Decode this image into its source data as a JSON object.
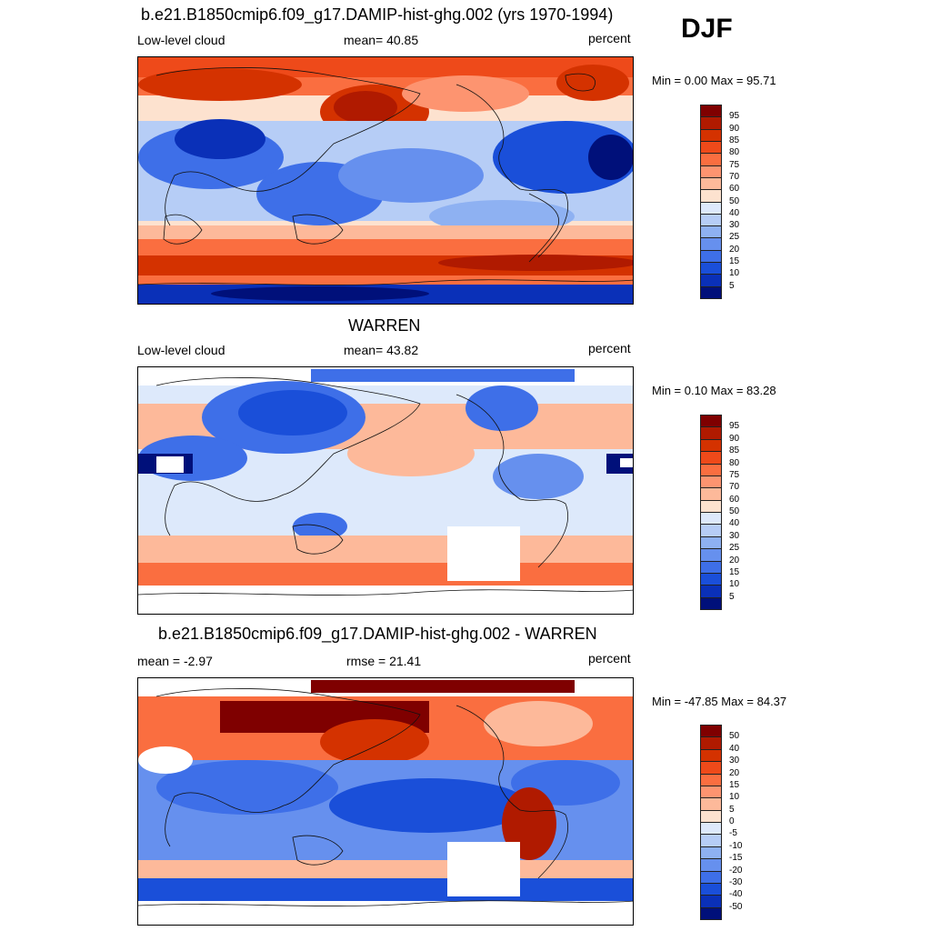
{
  "season": "DJF",
  "panels": [
    {
      "title": "b.e21.B1850cmip6.f09_g17.DAMIP-hist-ghg.002 (yrs 1970-1994)",
      "left_label": "Low-level cloud",
      "center_label": "mean=  40.85",
      "right_label": "percent",
      "range_label": "Min =   0.00 Max =  95.71",
      "colorbar_ticks": [
        "95",
        "90",
        "85",
        "80",
        "75",
        "70",
        "60",
        "50",
        "40",
        "30",
        "25",
        "20",
        "15",
        "10",
        "5"
      ],
      "colorbar_colors": [
        "#7f0000",
        "#b01a00",
        "#d43200",
        "#ee4a1a",
        "#fa6e40",
        "#fd9470",
        "#fdb99a",
        "#fde2cf",
        "#dde9fb",
        "#b6cdf6",
        "#8eb1f2",
        "#6690ee",
        "#3e6fe8",
        "#1a4fd9",
        "#0a30b8",
        "#00107a"
      ]
    },
    {
      "title": "WARREN",
      "left_label": "Low-level cloud",
      "center_label": "mean=  43.82",
      "right_label": "percent",
      "range_label": "Min =   0.10 Max =  83.28",
      "colorbar_ticks": [
        "95",
        "90",
        "85",
        "80",
        "75",
        "70",
        "60",
        "50",
        "40",
        "30",
        "25",
        "20",
        "15",
        "10",
        "5"
      ],
      "colorbar_colors": [
        "#7f0000",
        "#b01a00",
        "#d43200",
        "#ee4a1a",
        "#fa6e40",
        "#fd9470",
        "#fdb99a",
        "#fde2cf",
        "#dde9fb",
        "#b6cdf6",
        "#8eb1f2",
        "#6690ee",
        "#3e6fe8",
        "#1a4fd9",
        "#0a30b8",
        "#00107a"
      ]
    },
    {
      "title": "b.e21.B1850cmip6.f09_g17.DAMIP-hist-ghg.002 - WARREN",
      "left_label": "mean =  -2.97",
      "center_label": "rmse =  21.41",
      "right_label": "percent",
      "range_label": "Min = -47.85 Max =  84.37",
      "colorbar_ticks": [
        "50",
        "40",
        "30",
        "20",
        "15",
        "10",
        "5",
        "0",
        "-5",
        "-10",
        "-15",
        "-20",
        "-30",
        "-40",
        "-50"
      ],
      "colorbar_colors": [
        "#7f0000",
        "#b01a00",
        "#d43200",
        "#ee4a1a",
        "#fa6e40",
        "#fd9470",
        "#fdb99a",
        "#fde2cf",
        "#dde9fb",
        "#b6cdf6",
        "#8eb1f2",
        "#6690ee",
        "#3e6fe8",
        "#1a4fd9",
        "#0a30b8",
        "#00107a"
      ]
    }
  ]
}
